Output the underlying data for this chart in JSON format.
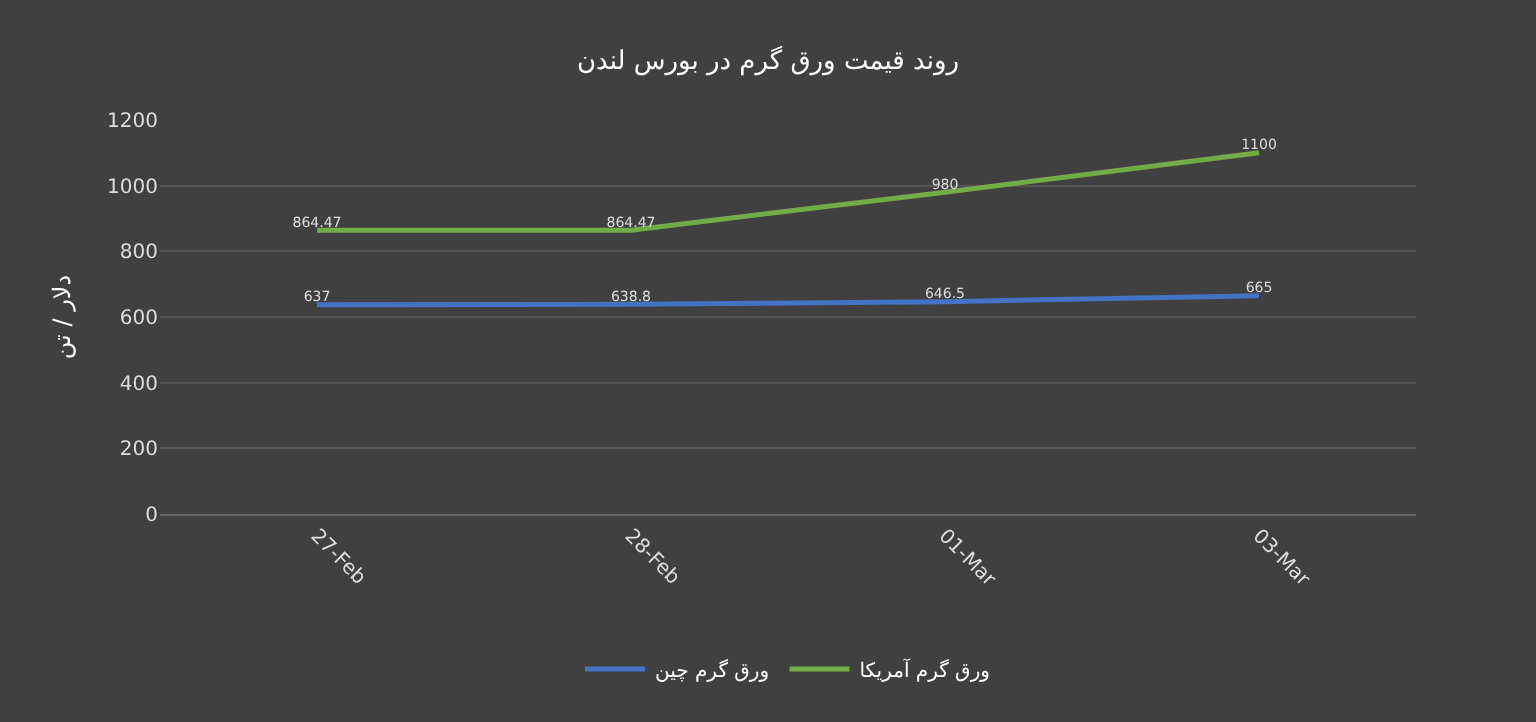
{
  "chart_data": {
    "type": "line",
    "title": "روند قیمت ورق گرم در بورس لندن",
    "ylabel": "دلار / تن",
    "categories": [
      "27-Feb",
      "28-Feb",
      "01-Mar",
      "03-Mar"
    ],
    "series": [
      {
        "name": "ورق گرم چین",
        "color": "#4472c4",
        "values": [
          637,
          638.8,
          646.5,
          665
        ]
      },
      {
        "name": "ورق گرم آمریکا",
        "color": "#70ad47",
        "values": [
          864.47,
          864.47,
          980,
          1100
        ]
      }
    ],
    "ylim": [
      0,
      1200
    ],
    "yticks": [
      0,
      200,
      400,
      600,
      800,
      1000,
      1200
    ],
    "grid": "y",
    "legend": "bottom",
    "marker": "none",
    "line_style": "solid",
    "data_labels": true
  }
}
